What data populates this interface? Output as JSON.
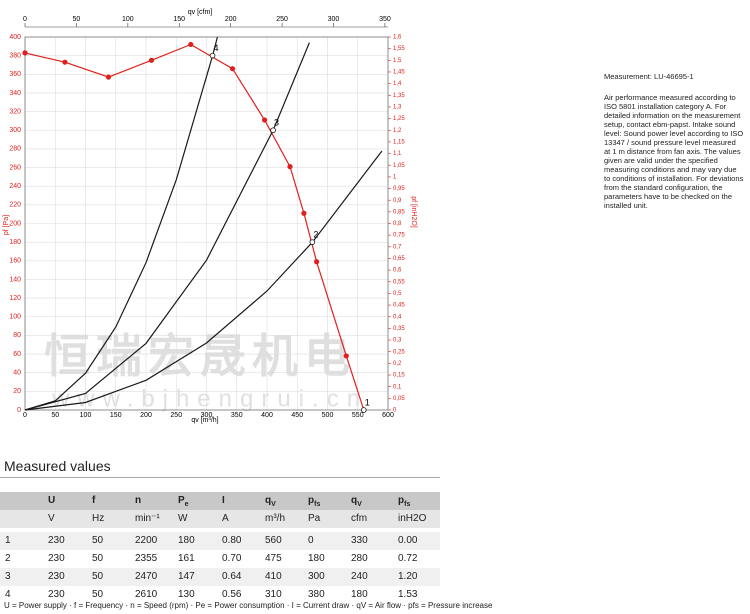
{
  "chart_data": {
    "type": "line",
    "xlabel": "qv [m³/h]",
    "x2label": "qv [cfm]",
    "ylabel": "pf [Pa]",
    "y2label": "pf [inH2O]",
    "xlim": [
      0,
      600
    ],
    "xticks": [
      0,
      50,
      100,
      150,
      200,
      250,
      300,
      350,
      400,
      450,
      500,
      550,
      600
    ],
    "x2lim": [
      0,
      353
    ],
    "x2ticks": [
      0,
      50,
      100,
      150,
      200,
      250,
      300,
      350
    ],
    "ylim": [
      0,
      400
    ],
    "yticks": [
      0,
      20,
      40,
      60,
      80,
      100,
      120,
      140,
      160,
      180,
      200,
      220,
      240,
      260,
      280,
      300,
      320,
      340,
      360,
      380,
      400
    ],
    "y2lim": [
      0,
      1.6
    ],
    "y2ticks": [
      0,
      {
        "value": 0.05,
        "label": "0,05"
      },
      {
        "value": 0.1,
        "label": "0,1"
      },
      {
        "value": 0.15,
        "label": "0,15"
      },
      {
        "value": 0.2,
        "label": "0,2"
      },
      {
        "value": 0.25,
        "label": "0,25"
      },
      {
        "value": 0.3,
        "label": "0,3"
      },
      {
        "value": 0.35,
        "label": "0,35"
      },
      {
        "value": 0.4,
        "label": "0,4"
      },
      {
        "value": 0.45,
        "label": "0,45"
      },
      {
        "value": 0.5,
        "label": "0,5"
      },
      {
        "value": 0.55,
        "label": "0,55"
      },
      {
        "value": 0.6,
        "label": "0,6"
      },
      {
        "value": 0.65,
        "label": "0,65"
      },
      {
        "value": 0.7,
        "label": "0,7"
      },
      {
        "value": 0.75,
        "label": "0,75"
      },
      {
        "value": 0.8,
        "label": "0,8"
      },
      {
        "value": 0.85,
        "label": "0,85"
      },
      {
        "value": 0.9,
        "label": "0,9"
      },
      {
        "value": 0.95,
        "label": "0,95"
      },
      1,
      {
        "value": 1.05,
        "label": "1,05"
      },
      {
        "value": 1.1,
        "label": "1,1"
      },
      {
        "value": 1.15,
        "label": "1,15"
      },
      {
        "value": 1.2,
        "label": "1,2"
      },
      {
        "value": 1.25,
        "label": "1,25"
      },
      {
        "value": 1.3,
        "label": "1,3"
      },
      {
        "value": 1.35,
        "label": "1,35"
      },
      {
        "value": 1.4,
        "label": "1,4"
      },
      {
        "value": 1.45,
        "label": "1,45"
      },
      {
        "value": 1.5,
        "label": "1,5"
      },
      {
        "value": 1.55,
        "label": "1,55"
      },
      {
        "value": 1.6,
        "label": "1,6"
      }
    ],
    "grid": true,
    "series": [
      {
        "color": "#e0201c",
        "markers": true,
        "x": [
          0,
          66,
          138,
          209,
          274,
          343,
          396,
          438,
          461,
          482,
          531,
          560
        ],
        "values": [
          383,
          373,
          357,
          375,
          392,
          366,
          311,
          261,
          211,
          159,
          58,
          0
        ]
      },
      {
        "color": "#1a1a1a",
        "markers": false,
        "x": [
          0,
          50,
          100,
          150,
          200,
          250,
          310,
          318
        ],
        "values": [
          0,
          9.9,
          39.5,
          89,
          158,
          247,
          380,
          400
        ]
      },
      {
        "color": "#1a1a1a",
        "markers": false,
        "x": [
          0,
          100,
          200,
          300,
          410,
          470
        ],
        "values": [
          0,
          17.8,
          71.4,
          160.6,
          300,
          394
        ]
      },
      {
        "color": "#1a1a1a",
        "markers": false,
        "x": [
          0,
          100,
          200,
          300,
          400,
          475,
          590
        ],
        "values": [
          0,
          8,
          31.9,
          71.8,
          127.6,
          180,
          277.7
        ]
      }
    ],
    "point_labels": [
      {
        "label": "1",
        "x": 560,
        "y": 0
      },
      {
        "label": "2",
        "x": 475,
        "y": 180
      },
      {
        "label": "3",
        "x": 410,
        "y": 300
      },
      {
        "label": "4",
        "x": 310,
        "y": 380
      }
    ]
  },
  "watermark": {
    "text": "恒瑞宏晟机电",
    "url": "www.bjhengrui.cn"
  },
  "notes": {
    "measurement": "Measurement: LU-46695-1",
    "description": "Air performance measured according to ISO 5801 installation category A. For detailed information on the measurement setup, contact ebm-papst. Intake sound level: Sound power level according to ISO 13347 / sound pressure level measured at 1 m distance from fan axis. The values given are valid under the specified measuring conditions and may vary due to conditions of installation. For deviations from the standard configuration, the parameters have to be checked on the installed unit."
  },
  "table": {
    "title": "Measured values",
    "header": [
      {
        "text": "U"
      },
      {
        "text": "f"
      },
      {
        "text": "n"
      },
      {
        "text": "P",
        "sub": "e"
      },
      {
        "text": "I"
      },
      {
        "text": "q",
        "sub": "V"
      },
      {
        "text": "p",
        "sub": "fs"
      },
      {
        "text": "q",
        "sub": "V"
      },
      {
        "text": "p",
        "sub": "fs"
      }
    ],
    "units": [
      "V",
      "Hz",
      "min⁻¹",
      "W",
      "A",
      "m³/h",
      "Pa",
      "cfm",
      "inH2O"
    ],
    "rows": [
      [
        "1",
        "230",
        "50",
        "2200",
        "180",
        "0.80",
        "560",
        "0",
        "330",
        "0.00"
      ],
      [
        "2",
        "230",
        "50",
        "2355",
        "161",
        "0.70",
        "475",
        "180",
        "280",
        "0.72"
      ],
      [
        "3",
        "230",
        "50",
        "2470",
        "147",
        "0.64",
        "410",
        "300",
        "240",
        "1.20"
      ],
      [
        "4",
        "230",
        "50",
        "2610",
        "130",
        "0.56",
        "310",
        "380",
        "180",
        "1.53"
      ]
    ],
    "footnote": "U = Power supply · f = Frequency · n = Speed (rpm) · Pe = Power consumption · I = Current draw · qV = Air flow · pfs = Pressure increase"
  }
}
